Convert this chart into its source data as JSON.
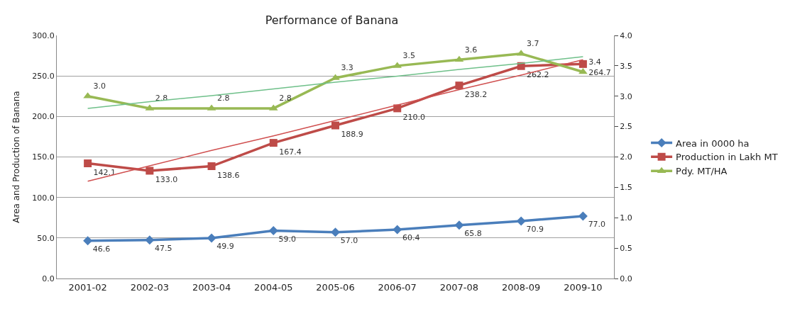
{
  "chart_data": {
    "type": "line",
    "title": "Performance of Banana",
    "ylabel": "Area and Production of Banana",
    "categories": [
      "2001-02",
      "2002-03",
      "2003-04",
      "2004-05",
      "2005-06",
      "2006-07",
      "2007-08",
      "2008-09",
      "2009-10"
    ],
    "series": [
      {
        "name": "Area in 0000 ha",
        "color": "#4a7ebb",
        "marker": "diamond",
        "values": [
          46.6,
          47.5,
          49.9,
          59.0,
          57.0,
          60.4,
          65.8,
          70.9,
          77.0
        ],
        "value_labels": [
          "46.6",
          "47.5",
          "49.9",
          "59.0",
          "57.0",
          "60.4",
          "65.8",
          "70.9",
          "77.0"
        ]
      },
      {
        "name": "Production in Lakh MT",
        "color": "#be4b48",
        "marker": "square",
        "values": [
          142.1,
          133.0,
          138.6,
          167.4,
          188.9,
          210.0,
          238.2,
          262.2,
          264.7
        ],
        "value_labels": [
          "142.1",
          "133.0",
          "138.6",
          "167.4",
          "188.9",
          "210.0",
          "238.2",
          "262.2",
          "264.7"
        ]
      },
      {
        "name": "Pdy. MT/HA",
        "color": "#98b954",
        "marker": "triangle",
        "axis": "y2",
        "values": [
          3.0,
          2.8,
          2.8,
          2.8,
          3.3,
          3.5,
          3.6,
          3.7,
          3.4
        ],
        "value_labels": [
          "3.0",
          "2.8",
          "2.8",
          "2.8",
          "3.3",
          "3.5",
          "3.6",
          "3.7",
          "3.4"
        ]
      },
      {
        "type": "line",
        "color": "#d05050",
        "marker": "none",
        "values": [
          120,
          139,
          158,
          176,
          195,
          214,
          233,
          251,
          270
        ]
      },
      {
        "type": "line",
        "color": "#6fc08a",
        "marker": "none",
        "axis": "y2",
        "values": [
          2.8,
          2.91,
          3.01,
          3.12,
          3.23,
          3.33,
          3.44,
          3.54,
          3.65
        ]
      }
    ],
    "ylim": [
      0,
      300
    ],
    "yticks": [
      {
        "value": 0,
        "label": "0.0"
      },
      {
        "value": 50,
        "label": "50.0"
      },
      {
        "value": 100,
        "label": "100.0"
      },
      {
        "value": 150,
        "label": "150.0"
      },
      {
        "value": 200,
        "label": "200.0"
      },
      {
        "value": 250,
        "label": "250.0"
      },
      {
        "value": 300,
        "label": "300.0"
      }
    ],
    "y2lim": [
      0,
      4
    ],
    "y2ticks": [
      {
        "value": 0,
        "label": "0.0"
      },
      {
        "value": 0.5,
        "label": "0.5"
      },
      {
        "value": 1,
        "label": "1.0"
      },
      {
        "value": 1.5,
        "label": "1.5"
      },
      {
        "value": 2,
        "label": "2.0"
      },
      {
        "value": 2.5,
        "label": "2.5"
      },
      {
        "value": 3,
        "label": "3.0"
      },
      {
        "value": 3.5,
        "label": "3.5"
      },
      {
        "value": 4,
        "label": "4.0"
      }
    ],
    "grid": "y",
    "legend": "right"
  }
}
